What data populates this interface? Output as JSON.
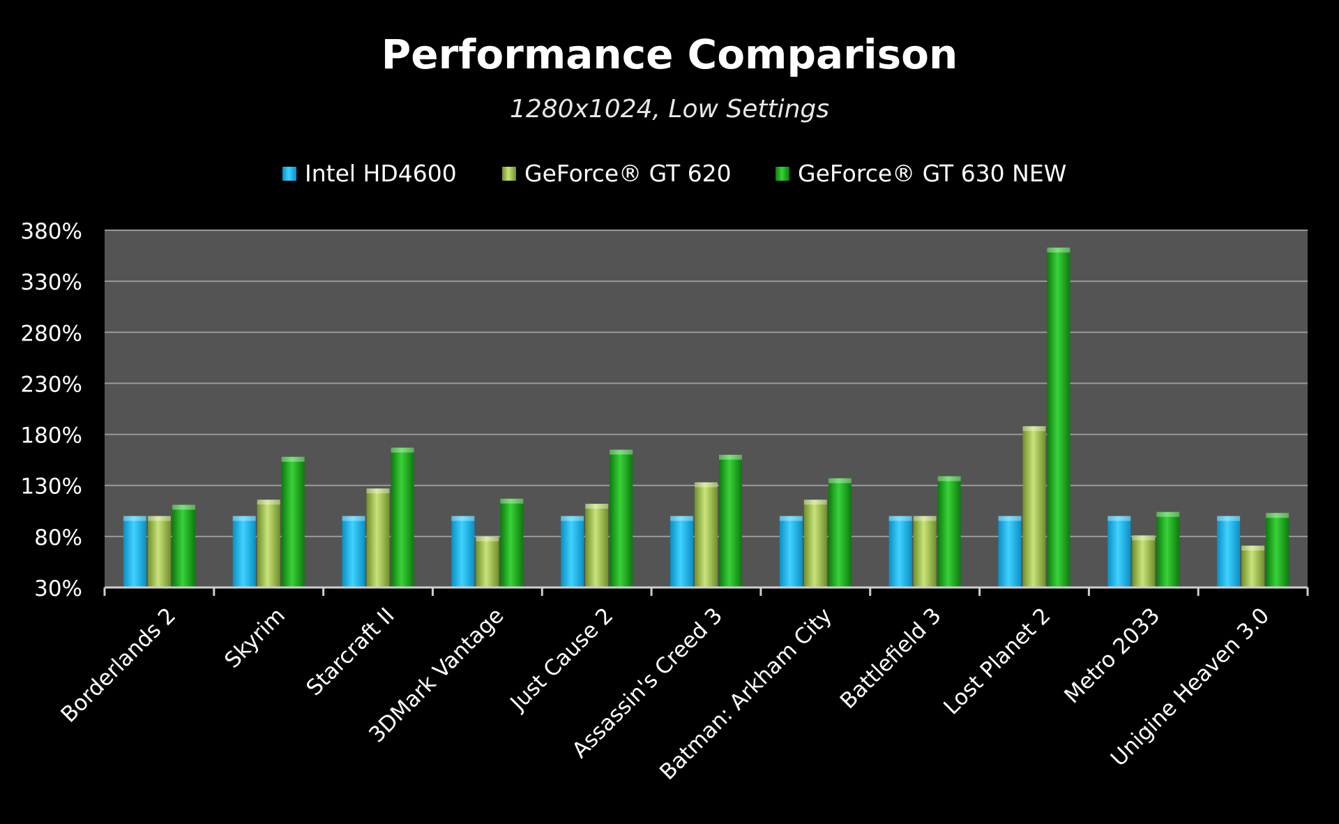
{
  "chart_data": {
    "type": "bar",
    "title": "Performance Comparison",
    "subtitle": "1280x1024, Low Settings",
    "categories": [
      "Borderlands 2",
      "Skyrim",
      "Starcraft II",
      "3DMark Vantage",
      "Just Cause 2",
      "Assassin's Creed 3",
      "Batman: Arkham City",
      "Battlefield 3",
      "Lost Planet 2",
      "Metro 2033",
      "Unigine Heaven 3.0"
    ],
    "series": [
      {
        "name": "Intel HD4600",
        "color": "#00b4f0",
        "values": [
          100,
          100,
          100,
          100,
          100,
          100,
          100,
          100,
          100,
          100,
          100
        ]
      },
      {
        "name": "GeForce® GT 620",
        "color": "#a4c64a",
        "values": [
          100,
          116,
          127,
          80,
          112,
          133,
          116,
          100,
          188,
          81,
          71
        ]
      },
      {
        "name": "GeForce® GT 630 NEW",
        "color": "#1aa51a",
        "values": [
          111,
          158,
          167,
          117,
          165,
          160,
          137,
          139,
          363,
          104,
          103
        ]
      }
    ],
    "y_ticks": [
      "380%",
      "330%",
      "280%",
      "230%",
      "180%",
      "130%",
      "80%",
      "30%"
    ],
    "ylim": [
      30,
      380
    ],
    "y_unit": "%",
    "grid": true,
    "legend_position": "top-center",
    "xlabel": "",
    "ylabel": ""
  }
}
